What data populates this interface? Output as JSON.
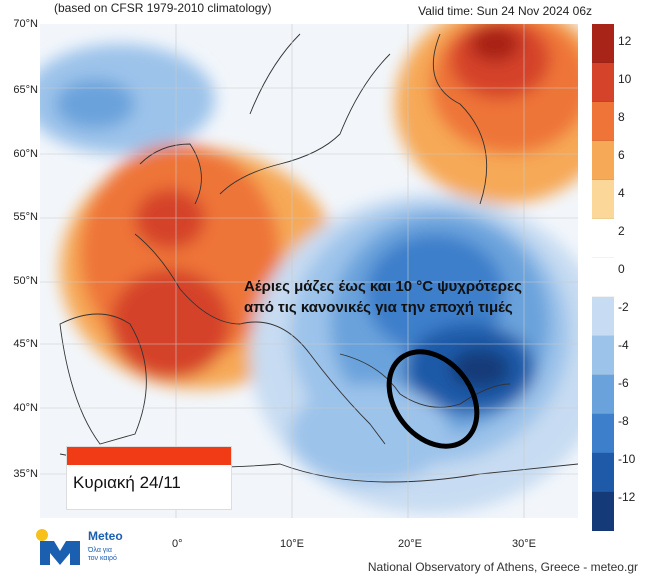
{
  "header": {
    "left": "(based on CFSR 1979-2010 climatology)",
    "right": "Valid time: Sun 24 Nov 2024 06z"
  },
  "lat_labels": [
    "70°N",
    "65°N",
    "60°N",
    "55°N",
    "50°N",
    "45°N",
    "40°N",
    "35°N"
  ],
  "lon_labels": [
    "0°",
    "10°E",
    "20°E",
    "30°E"
  ],
  "colorbar": {
    "labels": [
      "12",
      "10",
      "8",
      "6",
      "4",
      "2",
      "0",
      "-2",
      "-4",
      "-6",
      "-8",
      "-10",
      "-12"
    ],
    "colors": [
      "#a82418",
      "#d5432a",
      "#ee7438",
      "#f6a957",
      "#fbd89a",
      "#ffffff",
      "#ffffff",
      "#c7dcf2",
      "#9cc3ea",
      "#6aa3dc",
      "#3d7fcb",
      "#1f5aa8",
      "#153a78"
    ]
  },
  "headline": {
    "line1": "Αέριες μάζες έως και 10 °C ψυχρότερες",
    "line2": "από τις κανονικές για την εποχή τιμές"
  },
  "banner": {
    "text": "Κυριακή 24/11"
  },
  "logo": {
    "name": "Meteo",
    "tagline1": "Όλα για",
    "tagline2": "τον καιρό"
  },
  "credit": "National Observatory of Athens, Greece - meteo.gr"
}
